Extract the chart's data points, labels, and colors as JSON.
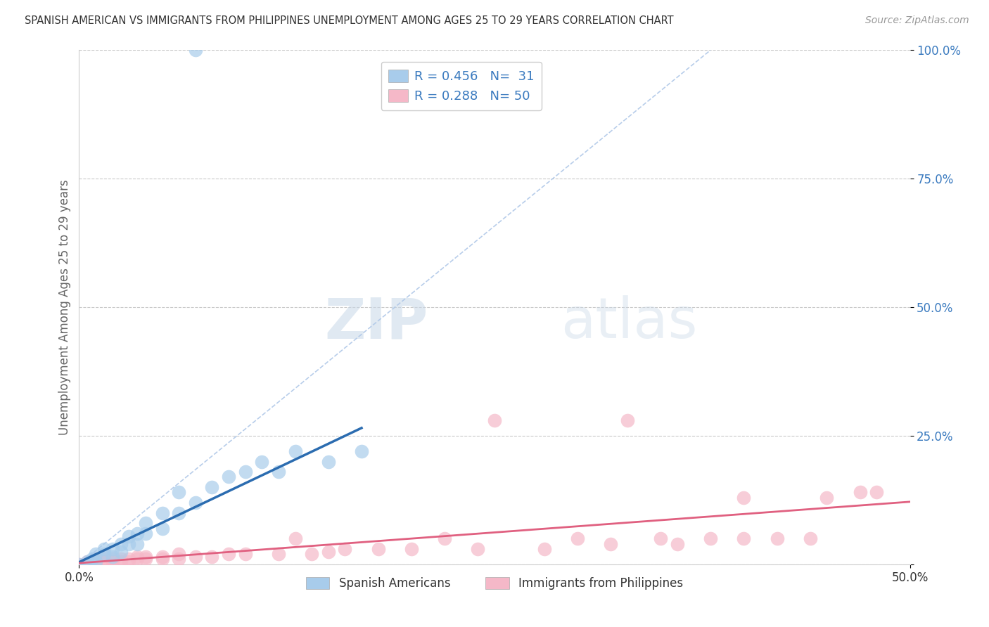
{
  "title": "SPANISH AMERICAN VS IMMIGRANTS FROM PHILIPPINES UNEMPLOYMENT AMONG AGES 25 TO 29 YEARS CORRELATION CHART",
  "source": "Source: ZipAtlas.com",
  "ylabel": "Unemployment Among Ages 25 to 29 years",
  "xlim": [
    0,
    0.5
  ],
  "ylim": [
    0,
    1.0
  ],
  "yticks": [
    0.0,
    0.25,
    0.5,
    0.75,
    1.0
  ],
  "ytick_labels": [
    "",
    "25.0%",
    "50.0%",
    "75.0%",
    "100.0%"
  ],
  "xtick_labels": [
    "0.0%",
    "50.0%"
  ],
  "legend_blue_label": "Spanish Americans",
  "legend_pink_label": "Immigrants from Philippines",
  "R_blue": 0.456,
  "N_blue": 31,
  "R_pink": 0.288,
  "N_pink": 50,
  "blue_color": "#a8cceb",
  "pink_color": "#f5b8c8",
  "blue_line_color": "#2b6cb0",
  "pink_line_color": "#e06080",
  "ref_line_color": "#b0c8e8",
  "blue_scatter": [
    [
      0.0,
      0.0
    ],
    [
      0.005,
      0.005
    ],
    [
      0.008,
      0.01
    ],
    [
      0.01,
      0.005
    ],
    [
      0.01,
      0.02
    ],
    [
      0.015,
      0.02
    ],
    [
      0.015,
      0.03
    ],
    [
      0.02,
      0.015
    ],
    [
      0.02,
      0.03
    ],
    [
      0.025,
      0.025
    ],
    [
      0.025,
      0.04
    ],
    [
      0.03,
      0.04
    ],
    [
      0.03,
      0.055
    ],
    [
      0.035,
      0.04
    ],
    [
      0.035,
      0.06
    ],
    [
      0.04,
      0.06
    ],
    [
      0.04,
      0.08
    ],
    [
      0.05,
      0.07
    ],
    [
      0.05,
      0.1
    ],
    [
      0.06,
      0.1
    ],
    [
      0.06,
      0.14
    ],
    [
      0.07,
      0.12
    ],
    [
      0.08,
      0.15
    ],
    [
      0.09,
      0.17
    ],
    [
      0.1,
      0.18
    ],
    [
      0.11,
      0.2
    ],
    [
      0.12,
      0.18
    ],
    [
      0.13,
      0.22
    ],
    [
      0.15,
      0.2
    ],
    [
      0.17,
      0.22
    ],
    [
      0.07,
      1.0
    ]
  ],
  "pink_scatter": [
    [
      0.0,
      0.0
    ],
    [
      0.003,
      0.0
    ],
    [
      0.005,
      0.005
    ],
    [
      0.008,
      0.005
    ],
    [
      0.01,
      0.0
    ],
    [
      0.01,
      0.01
    ],
    [
      0.015,
      0.005
    ],
    [
      0.015,
      0.01
    ],
    [
      0.02,
      0.005
    ],
    [
      0.02,
      0.01
    ],
    [
      0.025,
      0.005
    ],
    [
      0.025,
      0.01
    ],
    [
      0.03,
      0.005
    ],
    [
      0.03,
      0.01
    ],
    [
      0.035,
      0.01
    ],
    [
      0.035,
      0.015
    ],
    [
      0.04,
      0.01
    ],
    [
      0.04,
      0.015
    ],
    [
      0.05,
      0.01
    ],
    [
      0.05,
      0.015
    ],
    [
      0.06,
      0.01
    ],
    [
      0.06,
      0.02
    ],
    [
      0.07,
      0.015
    ],
    [
      0.08,
      0.015
    ],
    [
      0.09,
      0.02
    ],
    [
      0.1,
      0.02
    ],
    [
      0.12,
      0.02
    ],
    [
      0.13,
      0.05
    ],
    [
      0.14,
      0.02
    ],
    [
      0.15,
      0.025
    ],
    [
      0.16,
      0.03
    ],
    [
      0.18,
      0.03
    ],
    [
      0.2,
      0.03
    ],
    [
      0.22,
      0.05
    ],
    [
      0.24,
      0.03
    ],
    [
      0.25,
      0.28
    ],
    [
      0.28,
      0.03
    ],
    [
      0.3,
      0.05
    ],
    [
      0.32,
      0.04
    ],
    [
      0.33,
      0.28
    ],
    [
      0.35,
      0.05
    ],
    [
      0.36,
      0.04
    ],
    [
      0.38,
      0.05
    ],
    [
      0.4,
      0.05
    ],
    [
      0.4,
      0.13
    ],
    [
      0.42,
      0.05
    ],
    [
      0.44,
      0.05
    ],
    [
      0.45,
      0.13
    ],
    [
      0.47,
      0.14
    ],
    [
      0.48,
      0.14
    ]
  ],
  "watermark_zip": "ZIP",
  "watermark_atlas": "atlas",
  "background_color": "#ffffff",
  "grid_color": "#bbbbbb",
  "title_color": "#333333",
  "axis_label_color": "#666666"
}
